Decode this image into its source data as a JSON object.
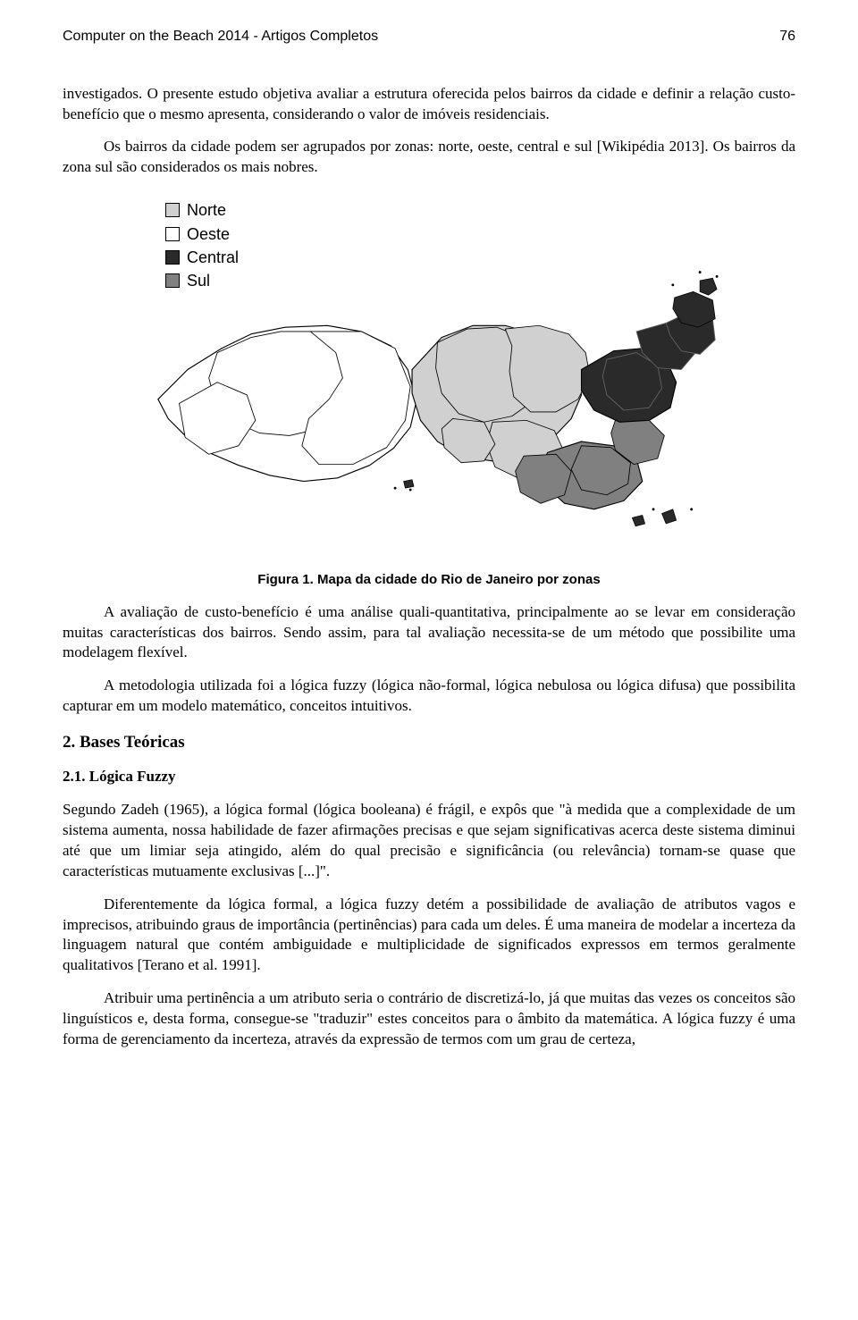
{
  "header": {
    "title": "Computer on the Beach 2014 - Artigos Completos",
    "page": "76"
  },
  "paragraphs": {
    "p1": "investigados. O presente estudo objetiva avaliar a estrutura oferecida pelos bairros da cidade e definir a relação custo-benefício que o mesmo apresenta, considerando o valor de imóveis residenciais.",
    "p2": "Os bairros da cidade podem ser agrupados por zonas: norte, oeste, central e sul [Wikipédia 2013]. Os bairros da zona sul são considerados os mais nobres.",
    "p3": "A avaliação de custo-benefício é uma análise quali-quantitativa, principalmente ao se levar em consideração muitas características dos bairros. Sendo assim, para tal avaliação necessita-se de um método que possibilite uma modelagem flexível.",
    "p4": "A metodologia utilizada foi a lógica fuzzy (lógica não-formal, lógica nebulosa ou lógica difusa) que possibilita capturar em um modelo matemático, conceitos intuitivos.",
    "p5": "Segundo Zadeh (1965), a lógica formal (lógica booleana) é frágil, e expôs que \"à medida que a complexidade de um sistema aumenta, nossa habilidade de fazer afirmações precisas e que sejam significativas acerca deste sistema diminui até que um limiar seja atingido, além do qual precisão e significância (ou relevância) tornam-se quase que características mutuamente exclusivas [...]\".",
    "p6": "Diferentemente da lógica formal, a lógica fuzzy detém a possibilidade de avaliação de atributos vagos e imprecisos, atribuindo graus de importância (pertinências) para cada um deles. É uma maneira de modelar a incerteza da linguagem natural que contém ambiguidade e multiplicidade de significados expressos em termos geralmente qualitativos [Terano et al. 1991].",
    "p7": "Atribuir uma pertinência a um atributo seria o contrário de discretizá-lo, já que muitas das vezes os conceitos são linguísticos e, desta forma, consegue-se \"traduzir\" estes conceitos para o âmbito da matemática. A lógica fuzzy é uma forma de gerenciamento da incerteza, através da expressão de termos com um grau de certeza,"
  },
  "figure": {
    "caption": "Figura 1. Mapa da cidade do Rio de Janeiro por zonas",
    "legend": [
      {
        "label": "Norte",
        "color": "#d0d0d0"
      },
      {
        "label": "Oeste",
        "color": "#ffffff"
      },
      {
        "label": "Central",
        "color": "#2a2a2a"
      },
      {
        "label": "Sul",
        "color": "#808080"
      }
    ],
    "map": {
      "background": "#ffffff",
      "stroke": "#000000",
      "stroke_width": 1.2,
      "regions": {
        "oeste": {
          "fill": "#ffffff",
          "sub_stroke": "#000000",
          "paths": [
            "M 60 235 L 95 200 L 135 175 L 170 158 L 210 150 L 260 148 L 300 155 L 335 172 L 355 200 L 365 238 L 358 268 L 338 293 L 310 313 L 272 328 L 232 332 L 192 325 L 155 313 L 120 298 L 92 278 L 72 258 Z",
            "M 130 180 L 170 162 L 205 155 L 240 155 L 268 165 L 285 185 L 292 208 L 288 232 L 275 255 L 250 270 L 215 278 L 180 275 L 150 262 L 128 240 L 120 210 Z",
            "M 240 155 L 300 155 L 340 175 L 358 220 L 352 260 L 330 292 L 290 312 L 250 312 L 230 290 L 238 258 L 262 235 L 278 210 L 270 180 Z",
            "M 85 240 L 130 215 L 165 230 L 175 260 L 155 290 L 120 300 L 92 280 Z"
          ]
        },
        "norte": {
          "fill": "#d0d0d0",
          "sub_stroke": "#000000",
          "paths": [
            "M 360 200 L 395 162 L 432 148 L 470 148 L 505 158 L 535 175 L 555 200 L 560 230 L 548 258 L 525 282 L 492 300 L 455 308 L 420 303 L 390 285 L 370 260 L 360 228 Z",
            "M 390 168 L 425 152 L 460 150 L 490 162 L 510 185 L 515 212 L 502 238 L 478 255 L 445 262 L 415 252 L 395 228 L 388 198 Z",
            "M 470 152 L 510 148 L 545 158 L 565 180 L 570 208 L 556 235 L 530 250 L 500 250 L 480 232 L 475 202 L 478 172 Z",
            "M 455 262 L 495 260 L 528 272 L 540 298 L 520 320 L 485 328 L 458 315 L 448 288 Z",
            "M 408 258 L 445 262 L 458 288 L 445 308 L 418 310 L 398 292 L 395 270 Z"
          ]
        },
        "central": {
          "fill": "#2a2a2a",
          "sub_stroke": "#666666",
          "paths": [
            "M 560 200 L 598 178 L 632 175 L 660 188 L 672 215 L 665 245 L 640 260 L 605 262 L 575 248 L 560 225 Z",
            "M 590 188 L 625 180 L 650 195 L 655 222 L 640 245 L 610 248 L 590 230 L 585 208 Z",
            "M 625 155 L 660 145 L 688 155 L 695 180 L 678 200 L 650 198 L 632 180 Z",
            "M 660 145 L 692 130 L 715 140 L 718 165 L 700 182 L 678 178 L 665 160 Z"
          ]
        },
        "sul": {
          "fill": "#808080",
          "sub_stroke": "#000000",
          "paths": [
            "M 520 298 L 560 285 L 598 290 L 625 305 L 632 332 L 610 355 L 575 365 L 540 358 L 518 338 L 512 315 Z",
            "M 560 290 L 595 292 L 618 310 L 615 335 L 590 348 L 560 342 L 548 318 Z",
            "M 492 302 L 530 300 L 548 320 L 540 348 L 512 358 L 488 345 L 482 320 Z",
            "M 600 260 L 638 258 L 658 278 L 650 305 L 622 312 L 600 295 L 595 275 Z"
          ]
        }
      },
      "islands": [
        "M 670 115 L 692 108 L 715 118 L 718 140 L 698 150 L 678 145 L 668 128 Z",
        "M 700 95 L 715 92 L 720 105 L 710 112 L 700 108 Z",
        "M 655 370 L 668 365 L 672 378 L 660 382 Z",
        "M 620 375 L 632 372 L 635 382 L 624 385 Z",
        "M 350 332 L 360 330 L 362 338 L 352 340 Z"
      ]
    }
  },
  "headings": {
    "section2": "2. Bases Teóricas",
    "sub21": "2.1. Lógica Fuzzy"
  },
  "colors": {
    "text": "#000000",
    "background": "#ffffff"
  }
}
